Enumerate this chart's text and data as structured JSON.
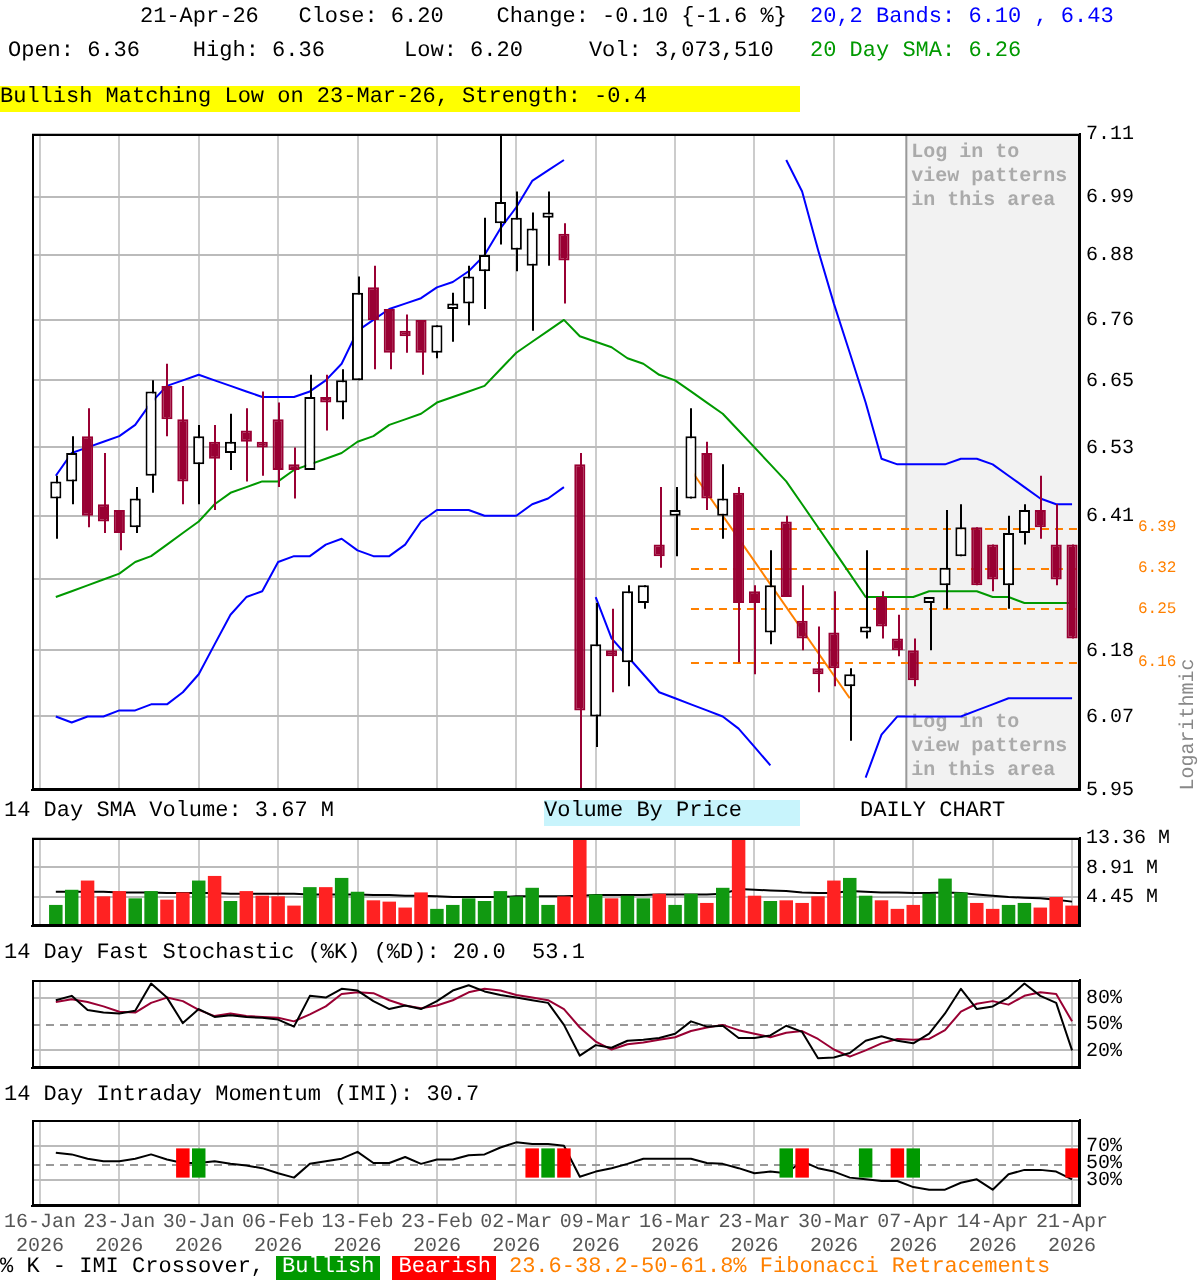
{
  "chart_data": [
    {
      "type": "candlestick",
      "title": "21-Apr-26   Close: 6.20    Change: -0.10 {-1.6 %}",
      "subtitle": "Open: 6.36    High: 6.36      Low: 6.20     Vol: 3,073,510",
      "ylabel": "Logarithmic",
      "categories": [
        "16-Jan 2026",
        null,
        null,
        null,
        null,
        "23-Jan 2026",
        null,
        null,
        null,
        null,
        "30-Jan 2026",
        null,
        null,
        null,
        null,
        "06-Feb 2026",
        null,
        null,
        null,
        null,
        "13-Feb 2026",
        null,
        null,
        null,
        null,
        "23-Feb 2026",
        null,
        null,
        null,
        null,
        "02-Mar 2026",
        null,
        null,
        null,
        null,
        "09-Mar 2026",
        null,
        null,
        null,
        null,
        "16-Mar 2026",
        null,
        null,
        null,
        null,
        "23-Mar 2026",
        null,
        null,
        null,
        null,
        "30-Mar 2026",
        null,
        null,
        null,
        null,
        "07-Apr 2026",
        null,
        null,
        null,
        null,
        "14-Apr 2026",
        null,
        null,
        null,
        null,
        "21-Apr 2026"
      ],
      "ohlc": [
        null,
        [
          6.44,
          6.48,
          6.37,
          6.47
        ],
        [
          6.47,
          6.55,
          6.43,
          6.52
        ],
        [
          6.55,
          6.6,
          6.39,
          6.41
        ],
        [
          6.43,
          6.52,
          6.38,
          6.4
        ],
        [
          6.42,
          6.42,
          6.35,
          6.38
        ],
        [
          6.39,
          6.46,
          6.38,
          6.44
        ],
        [
          6.48,
          6.65,
          6.45,
          6.63
        ],
        [
          6.64,
          6.68,
          6.55,
          6.58
        ],
        [
          6.58,
          6.64,
          6.43,
          6.47
        ],
        [
          6.5,
          6.57,
          6.43,
          6.55
        ],
        [
          6.54,
          6.57,
          6.42,
          6.51
        ],
        [
          6.52,
          6.59,
          6.49,
          6.54
        ],
        [
          6.56,
          6.6,
          6.47,
          6.54
        ],
        [
          6.54,
          6.63,
          6.48,
          6.53
        ],
        [
          6.58,
          6.61,
          6.46,
          6.49
        ],
        [
          6.5,
          6.53,
          6.44,
          6.49
        ],
        [
          6.49,
          6.66,
          6.49,
          6.62
        ],
        [
          6.62,
          6.66,
          6.56,
          6.61
        ],
        [
          6.61,
          6.67,
          6.58,
          6.65
        ],
        [
          6.65,
          6.84,
          6.65,
          6.81
        ],
        [
          6.82,
          6.86,
          6.67,
          6.76
        ],
        [
          6.78,
          6.78,
          6.67,
          6.7
        ],
        [
          6.74,
          6.77,
          6.7,
          6.73
        ],
        [
          6.76,
          6.76,
          6.66,
          6.7
        ],
        [
          6.7,
          6.75,
          6.69,
          6.75
        ],
        [
          6.78,
          6.81,
          6.72,
          6.79
        ],
        [
          6.79,
          6.86,
          6.75,
          6.84
        ],
        [
          6.85,
          6.95,
          6.78,
          6.88
        ],
        [
          6.94,
          7.11,
          6.9,
          6.98
        ],
        [
          6.89,
          7.0,
          6.85,
          6.95
        ],
        [
          6.86,
          6.96,
          6.74,
          6.93
        ],
        [
          6.95,
          7.0,
          6.86,
          6.96
        ],
        [
          6.92,
          6.94,
          6.79,
          6.87
        ],
        [
          6.5,
          6.52,
          5.95,
          6.08
        ],
        [
          6.07,
          6.26,
          6.02,
          6.19
        ],
        [
          6.18,
          6.25,
          6.11,
          6.17
        ],
        [
          6.16,
          6.29,
          6.12,
          6.28
        ],
        [
          6.26,
          6.29,
          6.25,
          6.29
        ],
        [
          6.36,
          6.46,
          6.32,
          6.34
        ],
        [
          6.41,
          6.46,
          6.34,
          6.42
        ],
        [
          6.44,
          6.6,
          6.44,
          6.55
        ],
        [
          6.52,
          6.54,
          6.42,
          6.44
        ],
        [
          6.41,
          6.5,
          6.37,
          6.44
        ],
        [
          6.45,
          6.46,
          6.16,
          6.26
        ],
        [
          6.28,
          6.29,
          6.14,
          6.26
        ],
        [
          6.21,
          6.35,
          6.19,
          6.29
        ],
        [
          6.4,
          6.41,
          6.27,
          6.27
        ],
        [
          6.23,
          6.29,
          6.18,
          6.2
        ],
        [
          6.15,
          6.22,
          6.11,
          6.14
        ],
        [
          6.21,
          6.28,
          6.12,
          6.15
        ],
        [
          6.12,
          6.15,
          6.03,
          6.14
        ],
        [
          6.21,
          6.35,
          6.2,
          6.22
        ],
        [
          6.27,
          6.28,
          6.2,
          6.22
        ],
        [
          6.2,
          6.24,
          6.17,
          6.18
        ],
        [
          6.18,
          6.2,
          6.12,
          6.13
        ],
        [
          6.26,
          6.27,
          6.18,
          6.27
        ],
        [
          6.29,
          6.42,
          6.25,
          6.32
        ],
        [
          6.34,
          6.43,
          6.34,
          6.39
        ],
        [
          6.39,
          6.39,
          6.29,
          6.29
        ],
        [
          6.36,
          6.36,
          6.28,
          6.3
        ],
        [
          6.29,
          6.41,
          6.25,
          6.38
        ],
        [
          6.38,
          6.43,
          6.36,
          6.42
        ],
        [
          6.42,
          6.48,
          6.37,
          6.39
        ],
        [
          6.36,
          6.43,
          6.29,
          6.3
        ],
        [
          6.36,
          6.36,
          6.2,
          6.2
        ]
      ],
      "series": [
        {
          "type": "line",
          "name": "20,2 Bands: 6.10 , 6.43",
          "color": "#0000ff",
          "values": [
            null,
            6.48,
            6.52,
            6.53,
            6.54,
            6.55,
            6.57,
            6.61,
            6.64,
            6.65,
            6.66,
            6.65,
            6.64,
            6.63,
            6.62,
            6.62,
            6.62,
            6.63,
            6.65,
            6.68,
            6.74,
            6.76,
            6.78,
            6.79,
            6.8,
            6.82,
            6.83,
            6.85,
            6.88,
            6.93,
            6.97,
            7.02,
            7.04,
            7.06,
            null,
            null,
            null,
            null,
            null,
            null,
            null,
            null,
            null,
            null,
            null,
            null,
            null,
            7.06,
            7.0,
            6.89,
            6.79,
            6.7,
            6.61,
            6.51,
            6.5,
            6.5,
            6.5,
            6.5,
            6.51,
            6.51,
            6.5,
            6.48,
            6.46,
            6.44,
            6.43,
            6.43
          ]
        },
        {
          "type": "line",
          "color": "#0000ff",
          "values": [
            null,
            6.07,
            6.06,
            6.07,
            6.07,
            6.08,
            6.08,
            6.09,
            6.09,
            6.11,
            6.14,
            6.19,
            6.24,
            6.27,
            6.28,
            6.33,
            6.34,
            6.34,
            6.36,
            6.37,
            6.35,
            6.34,
            6.34,
            6.36,
            6.4,
            6.42,
            6.42,
            6.42,
            6.41,
            6.41,
            6.41,
            6.43,
            6.44,
            6.46,
            null,
            6.27,
            6.2,
            6.17,
            6.14,
            6.11,
            6.1,
            6.09,
            6.08,
            6.07,
            6.05,
            6.02,
            5.99,
            null,
            null,
            null,
            null,
            null,
            5.97,
            6.04,
            6.07,
            6.07,
            6.07,
            6.07,
            6.07,
            6.08,
            6.09,
            6.1,
            6.1,
            6.1,
            6.1,
            6.1
          ]
        },
        {
          "type": "line",
          "name": "20 Day SMA: 6.26",
          "color": "#009900",
          "values": [
            null,
            6.27,
            6.28,
            6.29,
            6.3,
            6.31,
            6.33,
            6.34,
            6.36,
            6.38,
            6.4,
            6.43,
            6.45,
            6.46,
            6.47,
            6.47,
            6.49,
            6.5,
            6.51,
            6.52,
            6.54,
            6.55,
            6.57,
            6.58,
            6.59,
            6.61,
            6.62,
            6.63,
            6.64,
            6.67,
            6.7,
            6.72,
            6.74,
            6.76,
            6.73,
            6.72,
            6.71,
            6.69,
            6.68,
            6.66,
            6.65,
            6.63,
            6.61,
            6.59,
            6.56,
            6.53,
            6.5,
            6.47,
            6.43,
            6.39,
            6.35,
            6.31,
            6.27,
            6.27,
            6.27,
            6.27,
            6.28,
            6.28,
            6.28,
            6.28,
            6.27,
            6.27,
            6.26,
            6.26,
            6.26,
            6.26
          ]
        },
        {
          "type": "line",
          "color": "#ff8000",
          "values": [
            null,
            null,
            null,
            null,
            null,
            null,
            null,
            null,
            null,
            null,
            null,
            null,
            null,
            null,
            null,
            null,
            null,
            null,
            null,
            null,
            null,
            null,
            null,
            null,
            null,
            null,
            null,
            null,
            null,
            null,
            null,
            null,
            null,
            null,
            null,
            null,
            null,
            null,
            null,
            null,
            null,
            6.49,
            null,
            null,
            null,
            null,
            null,
            null,
            null,
            null,
            null,
            6.1,
            null,
            null,
            null,
            null,
            null,
            null,
            null,
            null,
            null,
            null,
            null,
            null,
            null,
            null
          ]
        }
      ],
      "ref_lines": [
        {
          "axis": "y",
          "value": 6.39,
          "label": "6.39",
          "color": "#ff8000",
          "line_style": "dashed"
        },
        {
          "axis": "y",
          "value": 6.32,
          "label": "6.32",
          "color": "#ff8000",
          "line_style": "dashed"
        },
        {
          "axis": "y",
          "value": 6.25,
          "label": "6.25",
          "color": "#ff8000",
          "line_style": "dashed"
        },
        {
          "axis": "y",
          "value": 6.16,
          "label": "6.16",
          "color": "#ff8000",
          "line_style": "dashed"
        }
      ],
      "bands": [
        {
          "axis": "x",
          "from": "07-Apr 2026",
          "to": "21-Apr 2026",
          "color": "#f2f2f2"
        }
      ],
      "annotations": [
        "Bullish Matching Low on 23-Mar-26, Strength: -0.4",
        "Log in to view patterns in this area",
        "Log in to view patterns in this area"
      ],
      "log": true,
      "ylim": [
        5.95,
        7.11
      ],
      "yticks": [
        7.11,
        6.99,
        6.88,
        6.76,
        6.65,
        6.53,
        6.41,
        {
          "value": 6.3,
          "label": null
        },
        6.18,
        6.07,
        5.95
      ],
      "grid": true,
      "tick_labels": "y",
      "legend": "top right"
    },
    {
      "type": "bar",
      "title": "14 Day SMA Volume: 3.67 M",
      "categories": [
        "16-Jan 2026",
        null,
        null,
        null,
        null,
        "23-Jan 2026",
        null,
        null,
        null,
        null,
        "30-Jan 2026",
        null,
        null,
        null,
        null,
        "06-Feb 2026",
        null,
        null,
        null,
        null,
        "13-Feb 2026",
        null,
        null,
        null,
        null,
        "23-Feb 2026",
        null,
        null,
        null,
        null,
        "02-Mar 2026",
        null,
        null,
        null,
        null,
        "09-Mar 2026",
        null,
        null,
        null,
        null,
        "16-Mar 2026",
        null,
        null,
        null,
        null,
        "23-Mar 2026",
        null,
        null,
        null,
        null,
        "30-Mar 2026",
        null,
        null,
        null,
        null,
        "07-Apr 2026",
        null,
        null,
        null,
        null,
        "14-Apr 2026",
        null,
        null,
        null,
        null,
        "21-Apr 2026"
      ],
      "series": [
        {
          "type": "bar",
          "values": [
            null,
            3.2,
            5.5,
            6.9,
            4.5,
            5.3,
            4.2,
            5.3,
            4.0,
            5.1,
            6.9,
            7.6,
            3.8,
            5.3,
            4.6,
            4.5,
            3.1,
            5.9,
            5.9,
            7.3,
            5.2,
            3.9,
            3.7,
            2.8,
            5.1,
            2.6,
            3.2,
            4.2,
            3.8,
            5.3,
            4.5,
            5.8,
            3.2,
            4.5,
            13.1,
            4.8,
            4.2,
            4.6,
            4.2,
            4.9,
            3.2,
            4.9,
            3.5,
            5.8,
            13.3,
            4.6,
            3.8,
            3.9,
            3.5,
            4.5,
            6.9,
            7.3,
            4.6,
            3.9,
            2.6,
            3.2,
            4.9,
            7.2,
            5.1,
            3.5,
            2.6,
            3.2,
            3.5,
            2.8,
            4.4,
            3.1
          ],
          "colors": [
            null,
            "#119911",
            "#119911",
            "#ff2222",
            "#ff2222",
            "#ff2222",
            "#119911",
            "#119911",
            "#ff2222",
            "#ff2222",
            "#119911",
            "#ff2222",
            "#119911",
            "#ff2222",
            "#ff2222",
            "#ff2222",
            "#ff2222",
            "#119911",
            "#ff2222",
            "#119911",
            "#119911",
            "#ff2222",
            "#ff2222",
            "#ff2222",
            "#ff2222",
            "#119911",
            "#119911",
            "#119911",
            "#119911",
            "#119911",
            "#119911",
            "#119911",
            "#119911",
            "#ff2222",
            "#ff2222",
            "#119911",
            "#ff2222",
            "#119911",
            "#119911",
            "#ff2222",
            "#119911",
            "#119911",
            "#ff2222",
            "#119911",
            "#ff2222",
            "#ff2222",
            "#119911",
            "#ff2222",
            "#ff2222",
            "#ff2222",
            "#ff2222",
            "#119911",
            "#119911",
            "#ff2222",
            "#ff2222",
            "#ff2222",
            "#119911",
            "#119911",
            "#119911",
            "#ff2222",
            "#ff2222",
            "#119911",
            "#119911",
            "#ff2222",
            "#ff2222",
            "#ff2222"
          ]
        },
        {
          "type": "line",
          "color": "#000000",
          "values": [
            null,
            5.2,
            5.2,
            5.2,
            5.2,
            5.1,
            5.1,
            5.1,
            5.0,
            5.0,
            5.0,
            5.0,
            4.9,
            4.9,
            4.9,
            4.9,
            4.9,
            4.8,
            4.8,
            4.8,
            4.8,
            4.7,
            4.7,
            4.6,
            4.6,
            4.5,
            4.4,
            4.4,
            4.4,
            4.4,
            4.5,
            4.5,
            4.5,
            4.5,
            4.6,
            4.7,
            4.7,
            4.7,
            4.7,
            4.8,
            4.8,
            4.8,
            4.8,
            4.9,
            5.6,
            5.5,
            5.4,
            5.3,
            5.1,
            5.0,
            5.0,
            5.3,
            5.2,
            5.1,
            5.1,
            5.0,
            5.0,
            5.1,
            5.0,
            4.8,
            4.6,
            4.4,
            4.3,
            4.2,
            4.0,
            3.7
          ]
        }
      ],
      "annotations": [
        "Volume By Price",
        "DAILY CHART"
      ],
      "ylim": [
        0,
        13.36
      ],
      "yticks": [
        {
          "value": 4.45,
          "label": "4.45 M"
        },
        {
          "value": 8.91,
          "label": "8.91 M"
        },
        {
          "value": 13.36,
          "label": "13.36 M"
        }
      ],
      "grid": true,
      "tick_labels": "y"
    },
    {
      "type": "line",
      "title": "14 Day Fast Stochastic (%K) (%D): 20.0  53.1",
      "categories": [
        "16-Jan 2026",
        null,
        null,
        null,
        null,
        "23-Jan 2026",
        null,
        null,
        null,
        null,
        "30-Jan 2026",
        null,
        null,
        null,
        null,
        "06-Feb 2026",
        null,
        null,
        null,
        null,
        "13-Feb 2026",
        null,
        null,
        null,
        null,
        "23-Feb 2026",
        null,
        null,
        null,
        null,
        "02-Mar 2026",
        null,
        null,
        null,
        null,
        "09-Mar 2026",
        null,
        null,
        null,
        null,
        "16-Mar 2026",
        null,
        null,
        null,
        null,
        "23-Mar 2026",
        null,
        null,
        null,
        null,
        "30-Mar 2026",
        null,
        null,
        null,
        null,
        "07-Apr 2026",
        null,
        null,
        null,
        null,
        "14-Apr 2026",
        null,
        null,
        null,
        null,
        "21-Apr 2026"
      ],
      "series": [
        {
          "color": "#000000",
          "values": [
            null,
            77,
            82,
            66,
            63,
            62,
            65,
            96,
            80,
            51,
            67,
            58,
            60,
            58,
            57,
            55,
            47,
            82,
            80,
            90,
            88,
            76,
            67,
            71,
            67,
            76,
            88,
            94,
            87,
            83,
            80,
            77,
            74,
            49,
            14,
            26,
            23,
            31,
            32,
            34,
            39,
            53,
            47,
            48,
            34,
            34,
            37,
            48,
            41,
            11,
            12,
            17,
            31,
            36,
            31,
            28,
            39,
            62,
            90,
            67,
            70,
            80,
            96,
            82,
            74,
            20
          ]
        },
        {
          "color": "#990033",
          "values": [
            null,
            75,
            78,
            75,
            70,
            64,
            63,
            74,
            80,
            76,
            66,
            59,
            62,
            59,
            58,
            57,
            53,
            61,
            70,
            84,
            86,
            85,
            77,
            71,
            68,
            71,
            77,
            86,
            90,
            88,
            83,
            80,
            77,
            67,
            46,
            30,
            21,
            27,
            29,
            32,
            35,
            42,
            46,
            49,
            43,
            39,
            35,
            40,
            42,
            33,
            21,
            13,
            20,
            28,
            33,
            32,
            33,
            43,
            64,
            73,
            76,
            72,
            82,
            86,
            84,
            53
          ]
        }
      ],
      "ref_lines": [
        {
          "axis": "y",
          "value": 50,
          "color": "#999999",
          "line_style": "dashed"
        }
      ],
      "ylim": [
        0,
        100
      ],
      "yticks": [
        {
          "value": 20,
          "label": "20%"
        },
        {
          "value": 50,
          "label": "50%"
        },
        {
          "value": 80,
          "label": "80%"
        }
      ],
      "grid": true,
      "tick_labels": "y"
    },
    {
      "type": "line",
      "title": "14 Day Intraday Momentum (IMI): 30.7",
      "categories": [
        "16-Jan 2026",
        null,
        null,
        null,
        null,
        "23-Jan 2026",
        null,
        null,
        null,
        null,
        "30-Jan 2026",
        null,
        null,
        null,
        null,
        "06-Feb 2026",
        null,
        null,
        null,
        null,
        "13-Feb 2026",
        null,
        null,
        null,
        null,
        "23-Feb 2026",
        null,
        null,
        null,
        null,
        "02-Mar 2026",
        null,
        null,
        null,
        null,
        "09-Mar 2026",
        null,
        null,
        null,
        null,
        "16-Mar 2026",
        null,
        null,
        null,
        null,
        "23-Mar 2026",
        null,
        null,
        null,
        null,
        "30-Mar 2026",
        null,
        null,
        null,
        null,
        "07-Apr 2026",
        null,
        null,
        null,
        null,
        "14-Apr 2026",
        null,
        null,
        null,
        null,
        "21-Apr 2026"
      ],
      "series": [
        {
          "color": "#000000",
          "values": [
            null,
            62,
            60,
            55,
            52,
            52,
            55,
            60,
            54,
            50,
            50,
            52,
            49,
            47,
            44,
            38,
            33,
            49,
            52,
            55,
            63,
            50,
            50,
            57,
            49,
            54,
            54,
            59,
            60,
            68,
            74,
            72,
            72,
            70,
            34,
            40,
            44,
            49,
            55,
            55,
            55,
            55,
            50,
            49,
            44,
            38,
            40,
            38,
            52,
            44,
            40,
            33,
            31,
            29,
            29,
            22,
            19,
            19,
            27,
            31,
            19,
            37,
            42,
            42,
            40,
            31
          ]
        },
        {
          "type": "bar",
          "name": "Bullish",
          "color": "#009900",
          "values": [
            null,
            null,
            null,
            null,
            null,
            null,
            null,
            null,
            null,
            null,
            34,
            null,
            null,
            null,
            null,
            null,
            null,
            null,
            null,
            null,
            null,
            null,
            null,
            null,
            null,
            null,
            null,
            null,
            null,
            null,
            null,
            null,
            34,
            null,
            null,
            null,
            null,
            null,
            null,
            null,
            null,
            null,
            null,
            null,
            null,
            null,
            null,
            34,
            null,
            null,
            null,
            null,
            34,
            null,
            null,
            34,
            null,
            null,
            null,
            null,
            null,
            null,
            null,
            null,
            null,
            null
          ],
          "base": [
            null,
            null,
            null,
            null,
            null,
            null,
            null,
            null,
            null,
            null,
            33,
            null,
            null,
            null,
            null,
            null,
            null,
            null,
            null,
            null,
            null,
            null,
            null,
            null,
            null,
            null,
            null,
            null,
            null,
            null,
            null,
            null,
            33,
            null,
            null,
            null,
            null,
            null,
            null,
            null,
            null,
            null,
            null,
            null,
            null,
            null,
            null,
            33,
            null,
            null,
            null,
            null,
            33,
            null,
            null,
            33,
            null,
            null,
            null,
            null,
            null,
            null,
            null,
            null,
            null,
            null
          ]
        },
        {
          "type": "bar",
          "name": "Bearish",
          "color": "#ff0000",
          "values": [
            null,
            null,
            null,
            null,
            null,
            null,
            null,
            null,
            null,
            34,
            null,
            null,
            null,
            null,
            null,
            null,
            null,
            null,
            null,
            null,
            null,
            null,
            null,
            null,
            null,
            null,
            null,
            null,
            null,
            null,
            null,
            34,
            null,
            34,
            null,
            null,
            null,
            null,
            null,
            null,
            null,
            null,
            null,
            null,
            null,
            null,
            null,
            null,
            34,
            null,
            null,
            null,
            null,
            null,
            34,
            null,
            null,
            null,
            null,
            null,
            null,
            null,
            null,
            null,
            null,
            34
          ],
          "base": [
            null,
            null,
            null,
            null,
            null,
            null,
            null,
            null,
            null,
            33,
            null,
            null,
            null,
            null,
            null,
            null,
            null,
            null,
            null,
            null,
            null,
            null,
            null,
            null,
            null,
            null,
            null,
            null,
            null,
            null,
            null,
            33,
            null,
            33,
            null,
            null,
            null,
            null,
            null,
            null,
            null,
            null,
            null,
            null,
            null,
            null,
            null,
            null,
            33,
            null,
            null,
            null,
            null,
            null,
            33,
            null,
            null,
            null,
            null,
            null,
            null,
            null,
            null,
            null,
            null,
            33
          ]
        }
      ],
      "ref_lines": [
        {
          "axis": "y",
          "value": 50,
          "color": "#999999",
          "line_style": "dashed"
        }
      ],
      "annotations": [
        "% K - IMI Crossover,",
        "23.6-38.2-50-61.8% Fibonacci Retracements"
      ],
      "ylim": [
        0,
        100
      ],
      "yticks": [
        {
          "value": 30,
          "label": "30%"
        },
        {
          "value": 50,
          "label": "50%"
        },
        {
          "value": 70,
          "label": "70%"
        }
      ],
      "grid": true,
      "legend": "bottom"
    }
  ]
}
